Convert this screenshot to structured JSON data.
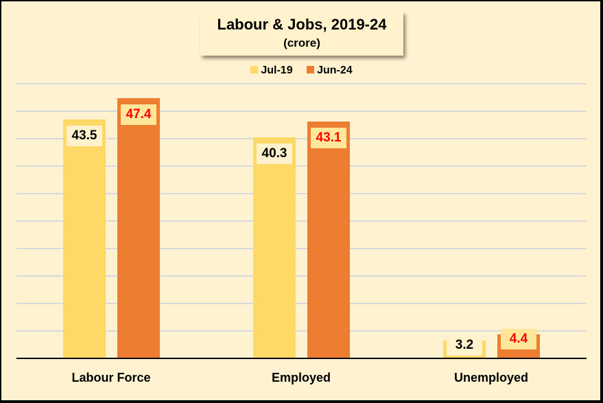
{
  "chart_data": {
    "type": "bar",
    "title": "Labour & Jobs, 2019-24",
    "subtitle": "(crore)",
    "categories": [
      "Labour Force",
      "Employed",
      "Unemployed"
    ],
    "series": [
      {
        "name": "Jul-19",
        "values": [
          43.5,
          40.3,
          3.2
        ],
        "color": "#FFD966"
      },
      {
        "name": "Jun-24",
        "values": [
          47.4,
          43.1,
          4.4
        ],
        "color": "#ED7D31"
      }
    ],
    "xlabel": "",
    "ylabel": "",
    "ylim": [
      0,
      50
    ],
    "grid": true,
    "legend_position": "top",
    "data_labels": {
      "Jul-19": [
        "43.5",
        "40.3",
        "3.2"
      ],
      "Jun-24": [
        "47.4",
        "43.1",
        "4.4"
      ]
    }
  },
  "colors": {
    "background": "#FFF2D1",
    "jul19": "#FFD966",
    "jun24": "#ED7D31",
    "jun24_label_text": "#FF0000"
  }
}
